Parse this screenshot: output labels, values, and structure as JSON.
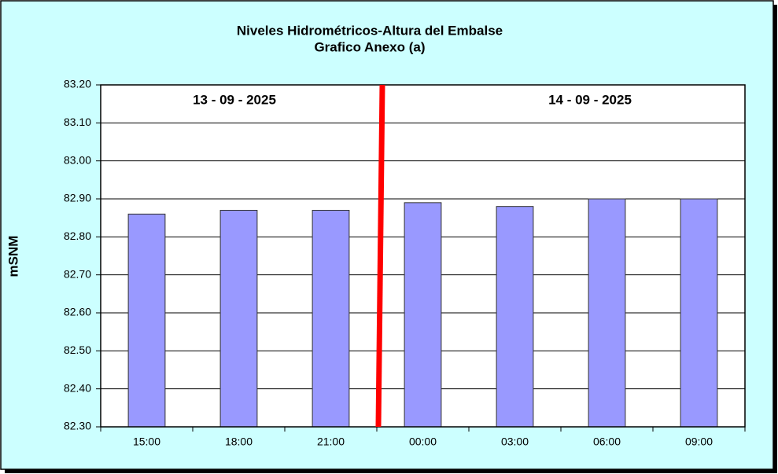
{
  "chart_data": {
    "type": "bar",
    "title": "Niveles Hidrométricos-Altura del Embalse",
    "subtitle": "Grafico Anexo (a)",
    "y_label": "mSNM",
    "annotations": [
      "13 - 09 - 2025",
      "14 - 09 - 2025"
    ],
    "categories": [
      "15:00",
      "18:00",
      "21:00",
      "00:00",
      "03:00",
      "06:00",
      "09:00"
    ],
    "values": [
      82.86,
      82.87,
      82.87,
      82.89,
      82.88,
      82.9,
      82.9
    ],
    "color": "#9999ff",
    "ylim": [
      82.3,
      83.2
    ],
    "yticks": [
      {
        "value": 82.3,
        "label": "82.30"
      },
      {
        "value": 82.4,
        "label": "82.40"
      },
      {
        "value": 82.5,
        "label": "82.50"
      },
      {
        "value": 82.6,
        "label": "82.60"
      },
      {
        "value": 82.7,
        "label": "82.70"
      },
      {
        "value": 82.8,
        "label": "82.80"
      },
      {
        "value": 82.9,
        "label": "82.90"
      },
      {
        "value": 83.0,
        "label": "83.00"
      },
      {
        "value": 83.1,
        "label": "83.10"
      },
      {
        "value": 83.2,
        "label": "83.20"
      }
    ],
    "grid": true
  }
}
